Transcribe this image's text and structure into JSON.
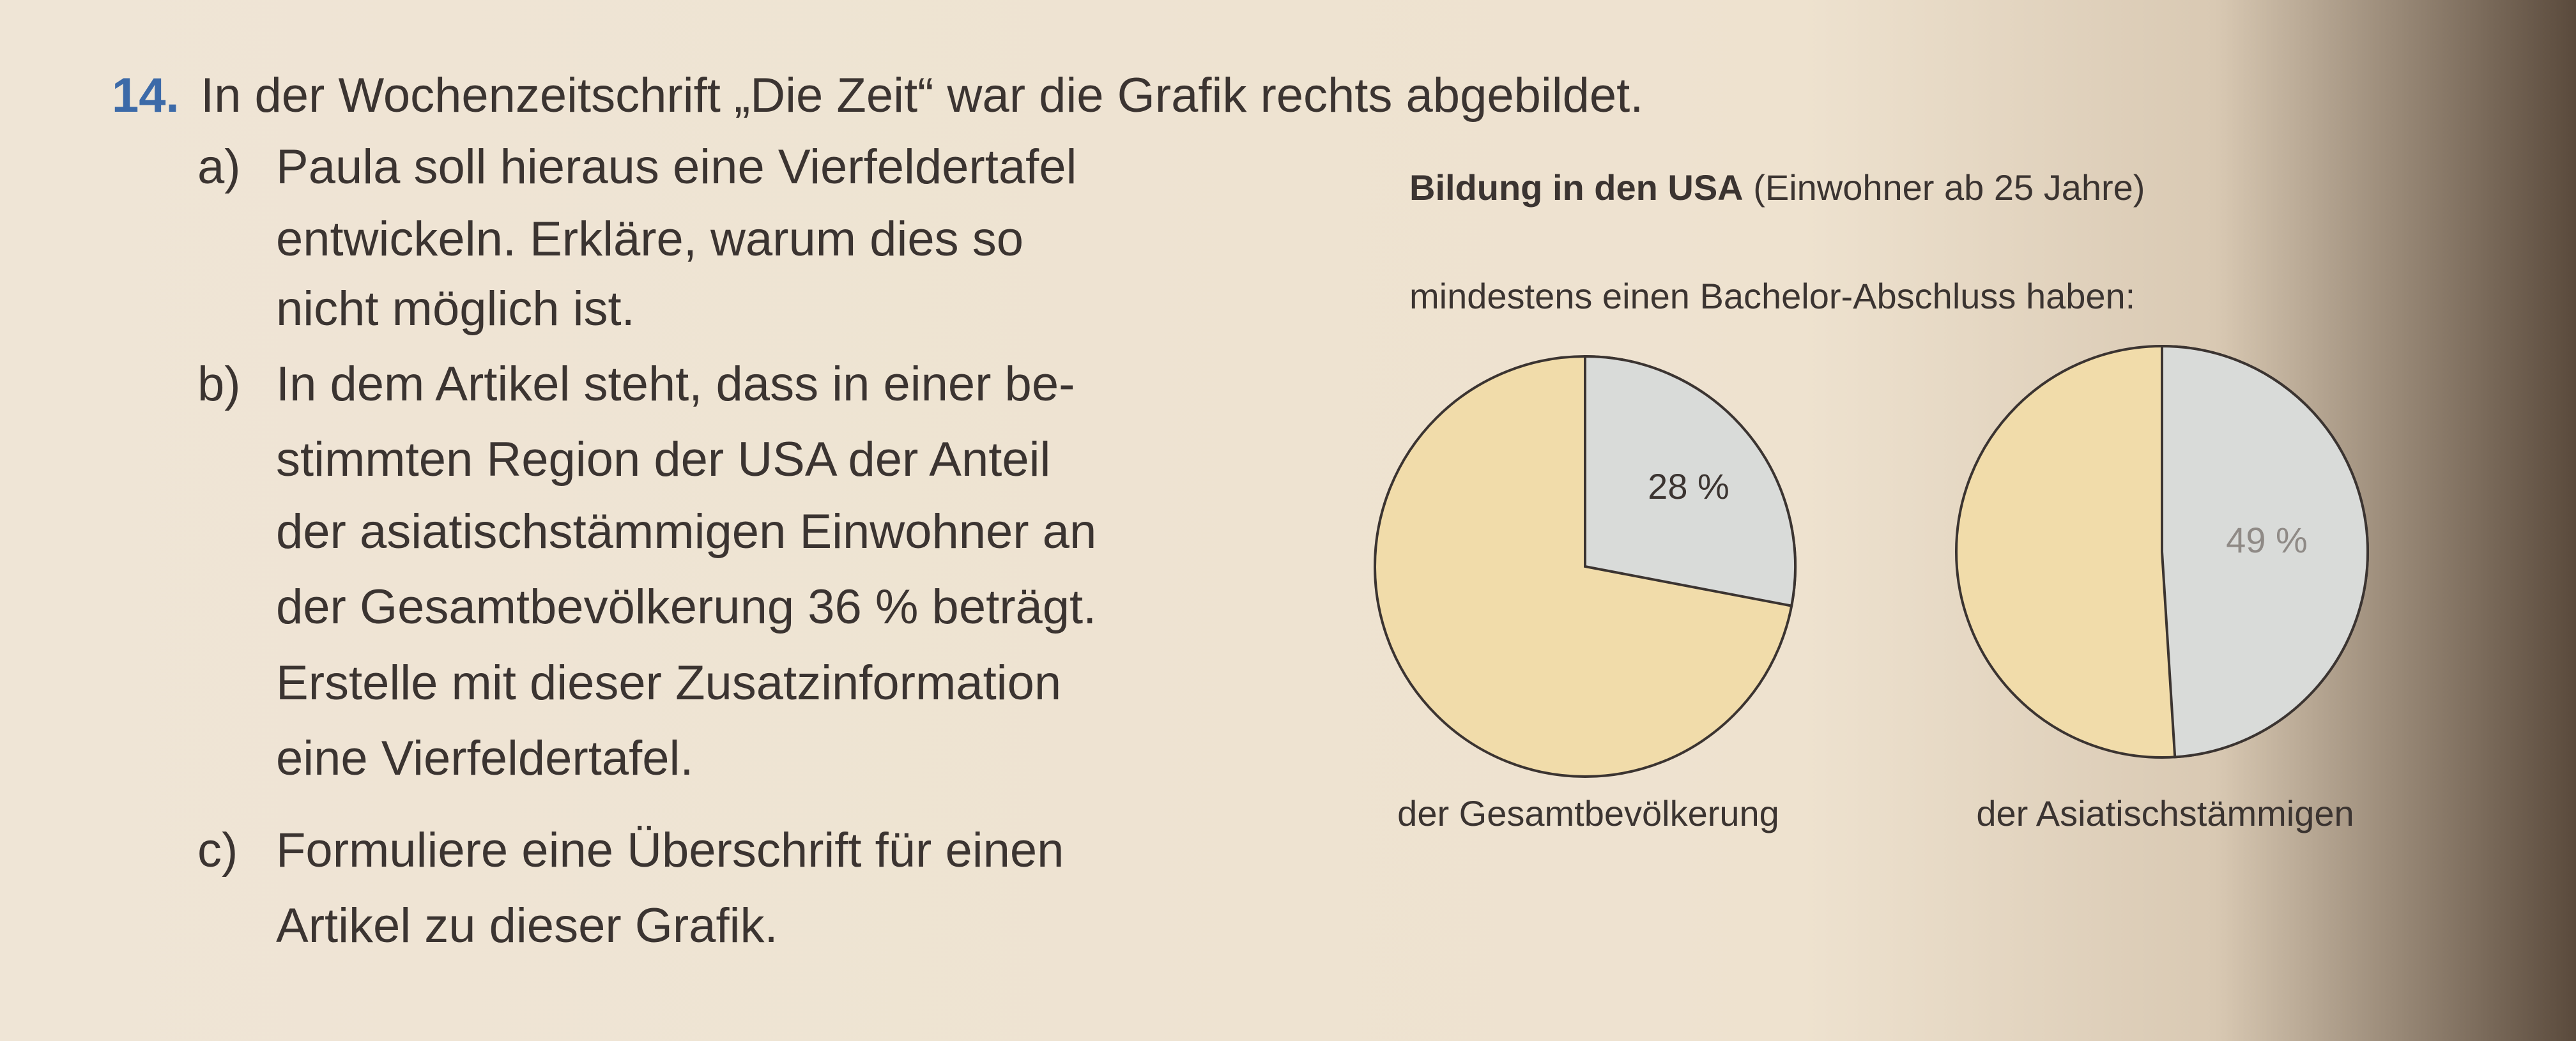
{
  "exercise": {
    "number": "14.",
    "intro": "In der Wochenzeitschrift „Die Zeit“ war die Grafik rechts abgebildet.",
    "tasks": [
      {
        "label": "a)",
        "lines": [
          "Paula soll hieraus eine Vierfeldertafel",
          "entwickeln. Erkläre, warum dies so",
          "nicht möglich ist."
        ]
      },
      {
        "label": "b)",
        "lines": [
          "In dem Artikel steht, dass in einer be-",
          "stimmten Region der USA der Anteil",
          "der asiatischstämmigen Einwohner an",
          "der Gesamtbevölkerung 36 % beträgt.",
          "Erstelle mit dieser Zusatzinformation",
          "eine Vierfeldertafel."
        ]
      },
      {
        "label": "c)",
        "lines": [
          "Formuliere eine Überschrift für einen",
          "Artikel zu dieser Grafik."
        ]
      }
    ]
  },
  "chart_data": {
    "type": "pie",
    "title": "Bildung in den USA",
    "title_note": "(Einwohner ab 25 Jahre)",
    "subtitle": "mindestens einen Bachelor-Abschluss haben:",
    "base_color": "#f1dcaa",
    "pies": [
      {
        "name": "der Gesamtbevölkerung",
        "value": 28,
        "value_label": "28 %",
        "color": "#d9dbd9"
      },
      {
        "name": "der Asiatischstämmigen",
        "value": 49,
        "value_label": "49 %",
        "color": "#d9dbd9"
      }
    ]
  }
}
